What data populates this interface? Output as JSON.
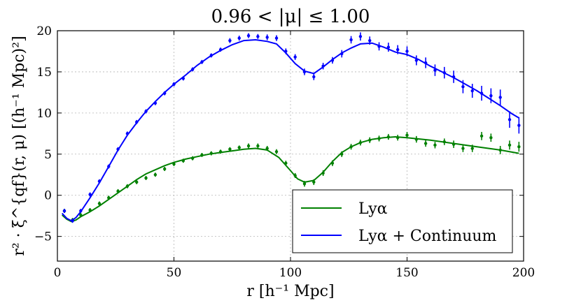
{
  "chart_data": {
    "type": "line",
    "title": "0.96 < |μ| ≤ 1.00",
    "xlabel": "r [h⁻¹ Mpc]",
    "ylabel": "r² · ξ^{qf}(r, μ) [(h⁻¹ Mpc)²]",
    "xlim": [
      0,
      200
    ],
    "ylim": [
      -8,
      20
    ],
    "xticks": [
      0,
      50,
      100,
      150,
      200
    ],
    "yticks": [
      -5,
      0,
      5,
      10,
      15,
      20
    ],
    "xtick_labels": [
      "0",
      "50",
      "100",
      "150",
      "200"
    ],
    "ytick_labels": [
      "−5",
      "0",
      "5",
      "10",
      "15",
      "20"
    ],
    "grid": true,
    "legend_position": "lower-right",
    "series": [
      {
        "name": "Lyα",
        "color": "#008000",
        "model": {
          "x": [
            2,
            4,
            6,
            8,
            10,
            14,
            18,
            22,
            26,
            30,
            34,
            38,
            42,
            46,
            50,
            55,
            60,
            65,
            70,
            75,
            80,
            85,
            90,
            95,
            100,
            103,
            106,
            110,
            114,
            118,
            122,
            126,
            130,
            135,
            140,
            145,
            150,
            160,
            170,
            180,
            190,
            198
          ],
          "y": [
            -2.4,
            -2.9,
            -3.2,
            -3.0,
            -2.6,
            -2.0,
            -1.3,
            -0.5,
            0.3,
            1.1,
            1.9,
            2.6,
            3.1,
            3.6,
            4.0,
            4.4,
            4.7,
            5.0,
            5.2,
            5.4,
            5.6,
            5.7,
            5.5,
            4.6,
            3.0,
            2.0,
            1.6,
            1.8,
            2.8,
            4.1,
            5.2,
            5.9,
            6.4,
            6.8,
            7.0,
            7.1,
            7.0,
            6.7,
            6.3,
            5.9,
            5.5,
            5.1
          ]
        },
        "points": {
          "x": [
            3,
            6.5,
            10,
            14,
            18,
            22,
            26,
            30,
            34,
            38,
            42,
            46,
            50,
            54,
            58,
            62,
            66,
            70,
            74,
            78,
            82,
            86,
            90,
            94,
            98,
            102,
            106,
            110,
            114,
            118,
            122,
            126,
            130,
            134,
            138,
            142,
            146,
            150,
            154,
            158,
            162,
            166,
            170,
            174,
            178,
            182,
            186,
            190,
            194,
            198
          ],
          "y": [
            -1.9,
            -3.0,
            -2.4,
            -1.8,
            -1.0,
            -0.3,
            0.5,
            1.1,
            1.6,
            2.1,
            2.5,
            3.2,
            3.8,
            4.2,
            4.5,
            4.9,
            5.1,
            5.3,
            5.6,
            5.8,
            6.0,
            6.0,
            5.7,
            5.3,
            3.9,
            2.4,
            1.4,
            1.6,
            2.7,
            3.9,
            5.0,
            5.9,
            6.4,
            6.7,
            6.9,
            7.1,
            7.0,
            7.3,
            6.8,
            6.3,
            6.1,
            6.5,
            6.2,
            5.7,
            5.7,
            7.2,
            7.0,
            5.5,
            6.1,
            5.9
          ],
          "err": [
            0.25,
            0.25,
            0.25,
            0.25,
            0.25,
            0.25,
            0.25,
            0.25,
            0.25,
            0.25,
            0.25,
            0.25,
            0.25,
            0.25,
            0.25,
            0.25,
            0.25,
            0.25,
            0.25,
            0.25,
            0.3,
            0.3,
            0.3,
            0.3,
            0.3,
            0.3,
            0.35,
            0.35,
            0.35,
            0.35,
            0.35,
            0.35,
            0.35,
            0.35,
            0.35,
            0.35,
            0.35,
            0.4,
            0.4,
            0.4,
            0.4,
            0.4,
            0.45,
            0.45,
            0.45,
            0.5,
            0.5,
            0.5,
            0.55,
            0.6
          ]
        }
      },
      {
        "name": "Lyα + Continuum",
        "color": "#0000ff",
        "model": {
          "x": [
            2,
            4,
            6,
            8,
            10,
            14,
            18,
            22,
            26,
            30,
            34,
            38,
            42,
            46,
            50,
            55,
            60,
            65,
            70,
            75,
            80,
            85,
            90,
            94,
            98,
            102,
            106,
            110,
            114,
            118,
            122,
            126,
            130,
            135,
            140,
            145,
            150,
            155,
            160,
            165,
            170,
            175,
            180,
            185,
            190,
            195,
            198
          ],
          "y": [
            -2.2,
            -2.8,
            -3.1,
            -2.7,
            -2.0,
            -0.3,
            1.5,
            3.5,
            5.5,
            7.3,
            8.8,
            10.2,
            11.4,
            12.5,
            13.5,
            14.6,
            15.8,
            16.8,
            17.6,
            18.3,
            18.8,
            18.9,
            18.7,
            18.4,
            17.3,
            16.0,
            15.1,
            14.8,
            15.6,
            16.5,
            17.3,
            17.9,
            18.4,
            18.5,
            18.0,
            17.4,
            17.1,
            16.5,
            15.7,
            15.0,
            14.3,
            13.5,
            12.7,
            11.8,
            10.9,
            9.9,
            9.4
          ]
        },
        "points": {
          "x": [
            3,
            6.5,
            10,
            14,
            18,
            22,
            26,
            30,
            34,
            38,
            42,
            46,
            50,
            54,
            58,
            62,
            66,
            70,
            74,
            78,
            82,
            86,
            90,
            94,
            98,
            102,
            106,
            110,
            114,
            118,
            122,
            126,
            130,
            134,
            138,
            142,
            146,
            150,
            154,
            158,
            162,
            166,
            170,
            174,
            178,
            182,
            186,
            190,
            194,
            198
          ],
          "y": [
            -1.9,
            -3.1,
            -1.9,
            0.1,
            1.7,
            3.5,
            5.6,
            7.5,
            8.9,
            10.2,
            11.2,
            12.4,
            13.5,
            14.2,
            15.3,
            16.2,
            17.0,
            17.7,
            18.8,
            19.1,
            19.4,
            19.3,
            19.2,
            19.1,
            17.5,
            16.8,
            15.0,
            14.4,
            15.7,
            16.4,
            17.2,
            18.9,
            19.3,
            18.8,
            18.1,
            18.0,
            17.7,
            17.5,
            16.4,
            16.1,
            15.2,
            14.9,
            14.4,
            13.2,
            12.7,
            12.4,
            12.1,
            11.9,
            9.2,
            8.5
          ]
        },
        "err_data": [
          0.25,
          0.25,
          0.25,
          0.25,
          0.25,
          0.25,
          0.25,
          0.25,
          0.25,
          0.25,
          0.25,
          0.25,
          0.25,
          0.25,
          0.25,
          0.25,
          0.25,
          0.25,
          0.3,
          0.3,
          0.3,
          0.3,
          0.35,
          0.35,
          0.35,
          0.35,
          0.4,
          0.4,
          0.4,
          0.4,
          0.45,
          0.45,
          0.5,
          0.5,
          0.5,
          0.55,
          0.55,
          0.6,
          0.6,
          0.65,
          0.7,
          0.7,
          0.75,
          0.8,
          0.85,
          0.9,
          0.9,
          0.95,
          1.0,
          1.0
        ]
      }
    ]
  }
}
